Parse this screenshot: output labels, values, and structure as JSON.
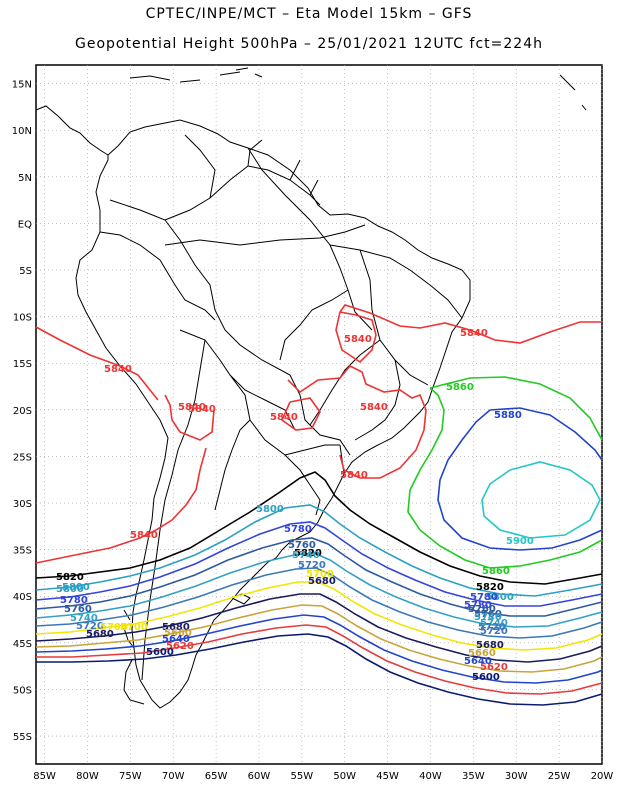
{
  "header": {
    "line1": "CPTEC/INPE/MCT –  Eta Model 15km – GFS",
    "line2": "Geopotential Height 500hPa – 25/01/2021 12UTC fct=224h"
  },
  "map": {
    "lat_labels": [
      "15N",
      "10N",
      "5N",
      "EQ",
      "5S",
      "10S",
      "15S",
      "20S",
      "25S",
      "30S",
      "35S",
      "40S",
      "45S",
      "50S",
      "55S"
    ],
    "lon_labels": [
      "85W",
      "80W",
      "75W",
      "70W",
      "65W",
      "60W",
      "55W",
      "50W",
      "45W",
      "40W",
      "35W",
      "30W",
      "25W",
      "20W"
    ],
    "grid": true,
    "extent": {
      "lon": [
        -86,
        -20
      ],
      "lat": [
        -58,
        17
      ]
    }
  },
  "contours": {
    "colors": {
      "5600": "#0b1a6e",
      "5620": "#e53b3b",
      "5640": "#2244cc",
      "5660": "#c9a43a",
      "5680": "#1a1a5e",
      "5700": "#f2e600",
      "5720": "#3a78b8",
      "5740": "#33a0c4",
      "5760": "#2c5aa0",
      "5780": "#3344dd",
      "5800": "#2aa0c4",
      "5820": "#000000",
      "5840": "#ee3333",
      "5860": "#1fcc1f",
      "5880": "#2244cc",
      "5900": "#22c7c7"
    },
    "labels": [
      {
        "text": "5840",
        "color": "#ee3333"
      },
      {
        "text": "5840",
        "color": "#ee3333"
      },
      {
        "text": "5840",
        "color": "#ee3333"
      },
      {
        "text": "5840",
        "color": "#ee3333"
      },
      {
        "text": "5840",
        "color": "#ee3333"
      },
      {
        "text": "5840",
        "color": "#ee3333"
      },
      {
        "text": "5840",
        "color": "#ee3333"
      },
      {
        "text": "5840",
        "color": "#ee3333"
      },
      {
        "text": "5840",
        "color": "#ee3333"
      },
      {
        "text": "5860",
        "color": "#1fcc1f"
      },
      {
        "text": "5880",
        "color": "#2244cc"
      },
      {
        "text": "5900",
        "color": "#22c7c7"
      },
      {
        "text": "5860",
        "color": "#1fcc1f"
      },
      {
        "text": "5820",
        "color": "#000000"
      },
      {
        "text": "5800",
        "color": "#2aa0c4"
      },
      {
        "text": "5780",
        "color": "#3344dd"
      },
      {
        "text": "5760",
        "color": "#2c5aa0"
      },
      {
        "text": "5740",
        "color": "#33a0c4"
      },
      {
        "text": "5720",
        "color": "#3a78b8"
      },
      {
        "text": "5700",
        "color": "#f2e600"
      },
      {
        "text": "5680",
        "color": "#1a1a5e"
      },
      {
        "text": "5820",
        "color": "#000000"
      },
      {
        "text": "5800",
        "color": "#2aa0c4"
      },
      {
        "text": "5780",
        "color": "#3344dd"
      },
      {
        "text": "5760",
        "color": "#2c5aa0"
      },
      {
        "text": "5740",
        "color": "#33a0c4"
      },
      {
        "text": "5720",
        "color": "#3a78b8"
      },
      {
        "text": "5680",
        "color": "#1a1a5e"
      },
      {
        "text": "5660",
        "color": "#c9a43a"
      },
      {
        "text": "5640",
        "color": "#2244cc"
      },
      {
        "text": "5620",
        "color": "#e53b3b"
      },
      {
        "text": "5600",
        "color": "#0b1a6e"
      },
      {
        "text": "5820",
        "color": "#000000"
      },
      {
        "text": "5800",
        "color": "#2aa0c4"
      },
      {
        "text": "5780",
        "color": "#3344dd"
      },
      {
        "text": "5760",
        "color": "#2c5aa0"
      },
      {
        "text": "5740",
        "color": "#33a0c4"
      },
      {
        "text": "5720",
        "color": "#3a78b8"
      },
      {
        "text": "5700",
        "color": "#f2e600"
      },
      {
        "text": "5680",
        "color": "#1a1a5e"
      },
      {
        "text": "5680",
        "color": "#1a1a5e"
      },
      {
        "text": "5660",
        "color": "#c9a43a"
      },
      {
        "text": "5640",
        "color": "#2244cc"
      },
      {
        "text": "5620",
        "color": "#e53b3b"
      },
      {
        "text": "5600",
        "color": "#0b1a6e"
      },
      {
        "text": "5700",
        "color": "#f2e600"
      },
      {
        "text": "5800",
        "color": "#2aa0c4"
      },
      {
        "text": "5780",
        "color": "#3344dd"
      },
      {
        "text": "5760",
        "color": "#2c5aa0"
      },
      {
        "text": "5740",
        "color": "#33a0c4"
      },
      {
        "text": "5720",
        "color": "#3a78b8"
      }
    ]
  }
}
